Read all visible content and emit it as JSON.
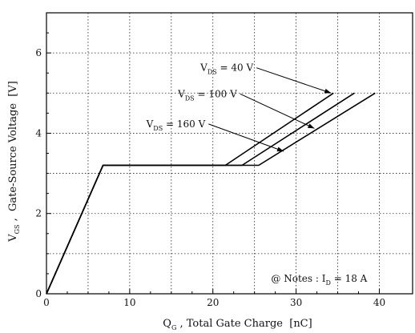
{
  "chart_data": {
    "type": "line",
    "title": "",
    "xlabel": {
      "main": "Q",
      "sub": "G",
      "rest": " , Total Gate Charge  [nC]"
    },
    "ylabel": {
      "main": "V",
      "sub": "GS",
      "rest": " ,  Gate-Source Voltage  [V]"
    },
    "xlim": [
      0,
      44
    ],
    "ylim": [
      0,
      7
    ],
    "xticks": [
      0,
      10,
      20,
      30,
      40
    ],
    "yticks": [
      0,
      2,
      4,
      6
    ],
    "grid": true,
    "series": [
      {
        "name": "V_DS = 40 V",
        "x": [
          0,
          6.8,
          21.5,
          34.5
        ],
        "y": [
          0,
          3.2,
          3.2,
          5.0
        ]
      },
      {
        "name": "V_DS = 100 V",
        "x": [
          0,
          6.8,
          23.5,
          37.0
        ],
        "y": [
          0,
          3.2,
          3.2,
          5.0
        ]
      },
      {
        "name": "V_DS = 160 V",
        "x": [
          0,
          6.8,
          25.5,
          39.5
        ],
        "y": [
          0,
          3.2,
          3.2,
          5.0
        ]
      }
    ],
    "annotations": [
      {
        "main": "V",
        "sub": "DS",
        "rest": " = 40 V",
        "anchor": [
          18.5,
          5.55
        ],
        "arrow_to": [
          34.2,
          5.0
        ]
      },
      {
        "main": "V",
        "sub": "DS",
        "rest": " = 100 V",
        "anchor": [
          15.8,
          4.9
        ],
        "arrow_to": [
          32.2,
          4.12
        ]
      },
      {
        "main": "V",
        "sub": "DS",
        "rest": " = 160 V",
        "anchor": [
          12.0,
          4.15
        ],
        "arrow_to": [
          28.5,
          3.55
        ]
      }
    ],
    "note": {
      "prefix": "@ Notes : I",
      "sub": "D",
      "rest": " = 18 A"
    }
  }
}
